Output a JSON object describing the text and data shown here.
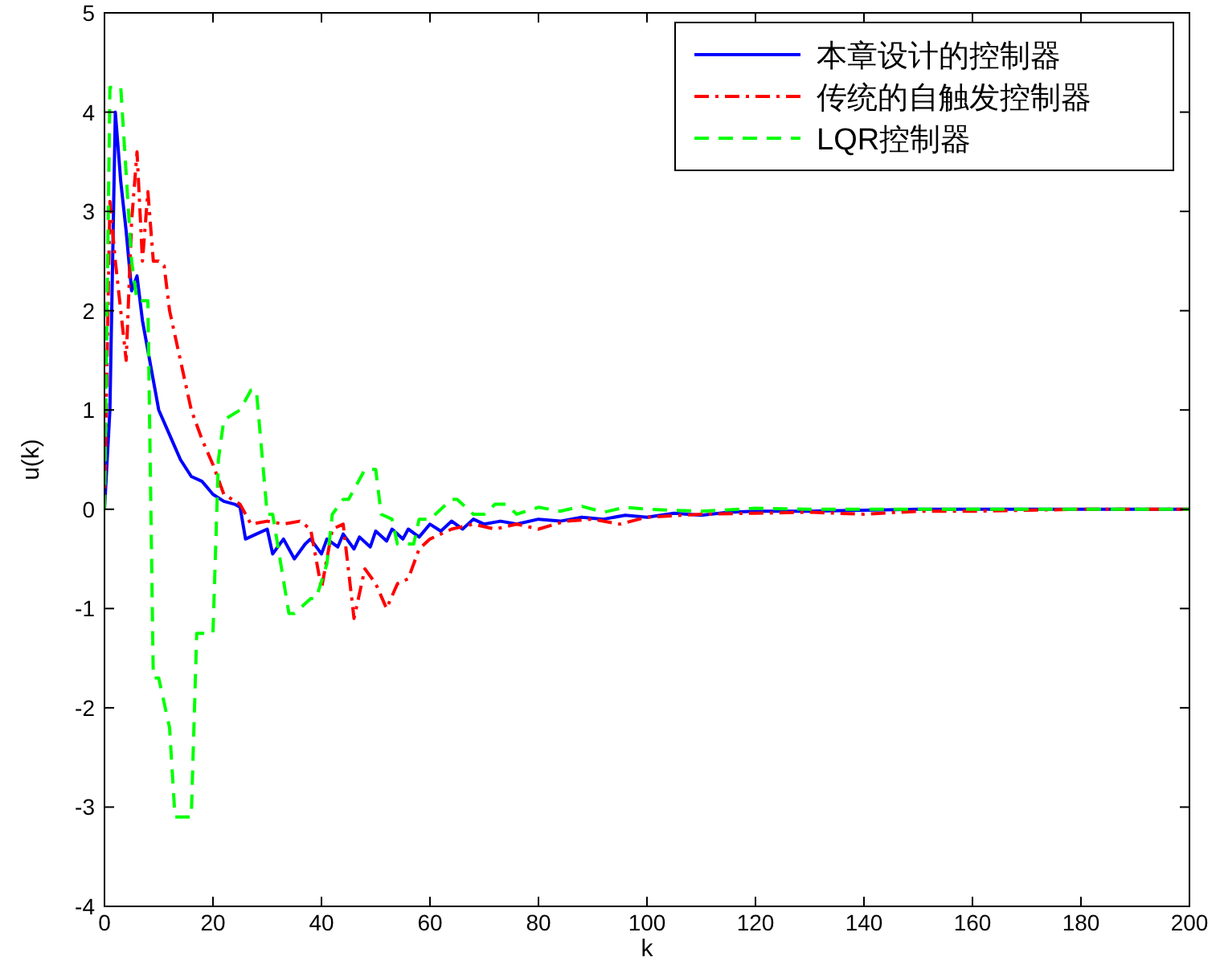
{
  "chart_data": {
    "type": "line",
    "xlabel": "k",
    "ylabel": "u(k)",
    "xlim": [
      0,
      200
    ],
    "ylim": [
      -4,
      5
    ],
    "xticks": [
      0,
      20,
      40,
      60,
      80,
      100,
      120,
      140,
      160,
      180,
      200
    ],
    "yticks": [
      -4,
      -3,
      -2,
      -1,
      0,
      1,
      2,
      3,
      4,
      5
    ],
    "legend": "top right",
    "series": [
      {
        "name": "本章设计的控制器",
        "color": "#0000ff",
        "line_style": "solid",
        "x": [
          0,
          1,
          2,
          3,
          4,
          5,
          6,
          7,
          8,
          10,
          12,
          14,
          16,
          18,
          20,
          22,
          24,
          25,
          26,
          28,
          30,
          31,
          33,
          34,
          35,
          37,
          38,
          40,
          41,
          43,
          44,
          46,
          47,
          49,
          50,
          52,
          53,
          55,
          56,
          58,
          60,
          62,
          64,
          66,
          68,
          70,
          73,
          76,
          80,
          84,
          88,
          92,
          96,
          100,
          105,
          110,
          115,
          120,
          130,
          140,
          150,
          160,
          170,
          180,
          190,
          200
        ],
        "values": [
          0,
          1.0,
          4.0,
          3.3,
          2.8,
          2.2,
          2.35,
          1.9,
          1.6,
          1.0,
          0.75,
          0.5,
          0.33,
          0.28,
          0.15,
          0.08,
          0.05,
          0.02,
          -0.3,
          -0.25,
          -0.2,
          -0.45,
          -0.3,
          -0.4,
          -0.5,
          -0.35,
          -0.3,
          -0.45,
          -0.3,
          -0.38,
          -0.25,
          -0.4,
          -0.28,
          -0.38,
          -0.22,
          -0.32,
          -0.2,
          -0.3,
          -0.2,
          -0.28,
          -0.15,
          -0.22,
          -0.12,
          -0.2,
          -0.1,
          -0.15,
          -0.12,
          -0.15,
          -0.1,
          -0.12,
          -0.08,
          -0.1,
          -0.06,
          -0.08,
          -0.04,
          -0.06,
          -0.03,
          -0.02,
          -0.02,
          -0.01,
          0,
          0,
          0,
          0,
          0,
          0
        ]
      },
      {
        "name": "传统的自触发控制器",
        "color": "#ff0000",
        "line_style": "dashdot",
        "x": [
          0,
          1,
          2,
          4,
          5,
          6,
          7,
          8,
          9,
          10,
          11,
          12,
          14,
          16,
          18,
          20,
          22,
          25,
          27,
          30,
          33,
          36,
          38,
          40,
          42,
          44,
          46,
          48,
          50,
          52,
          54,
          56,
          58,
          60,
          64,
          68,
          72,
          76,
          80,
          85,
          90,
          95,
          100,
          110,
          120,
          130,
          140,
          150,
          160,
          170,
          180,
          190,
          200
        ],
        "values": [
          0,
          3.1,
          2.5,
          1.5,
          2.9,
          3.6,
          2.5,
          3.2,
          2.5,
          2.5,
          2.45,
          2.0,
          1.5,
          1.0,
          0.7,
          0.45,
          0.15,
          0.05,
          -0.15,
          -0.12,
          -0.15,
          -0.12,
          -0.2,
          -0.8,
          -0.2,
          -0.15,
          -1.1,
          -0.6,
          -0.75,
          -1.0,
          -0.75,
          -0.7,
          -0.4,
          -0.3,
          -0.2,
          -0.15,
          -0.2,
          -0.15,
          -0.2,
          -0.12,
          -0.1,
          -0.15,
          -0.08,
          -0.05,
          -0.04,
          -0.03,
          -0.05,
          -0.02,
          -0.02,
          -0.01,
          0,
          0,
          0
        ]
      },
      {
        "name": "LQR控制器",
        "color": "#00ff00",
        "line_style": "dashed",
        "x": [
          0,
          1,
          3,
          5,
          6,
          8,
          9,
          10,
          12,
          13,
          16,
          17,
          20,
          21,
          22,
          25,
          27,
          28,
          30,
          31,
          34,
          35,
          38,
          39,
          41,
          42,
          44,
          45,
          48,
          50,
          51,
          53,
          54,
          57,
          58,
          60,
          64,
          65,
          68,
          70,
          72,
          74,
          76,
          80,
          84,
          88,
          92,
          96,
          100,
          110,
          120,
          130,
          140,
          150,
          160,
          170,
          180,
          190,
          200
        ],
        "values": [
          0,
          4.25,
          4.25,
          2.5,
          2.1,
          2.1,
          -1.7,
          -1.7,
          -2.2,
          -3.1,
          -3.1,
          -1.25,
          -1.25,
          0.5,
          0.9,
          1.0,
          1.2,
          1.2,
          -0.05,
          -0.05,
          -1.05,
          -1.05,
          -0.9,
          -0.9,
          -0.55,
          -0.05,
          0.1,
          0.1,
          0.4,
          0.4,
          -0.05,
          -0.1,
          -0.35,
          -0.35,
          -0.1,
          -0.1,
          0.1,
          0.1,
          -0.05,
          -0.05,
          0.05,
          0.05,
          -0.05,
          0.02,
          -0.02,
          0.03,
          -0.03,
          0.02,
          0,
          -0.02,
          0.01,
          0,
          0,
          0,
          0,
          0,
          0,
          0,
          0
        ]
      }
    ]
  }
}
